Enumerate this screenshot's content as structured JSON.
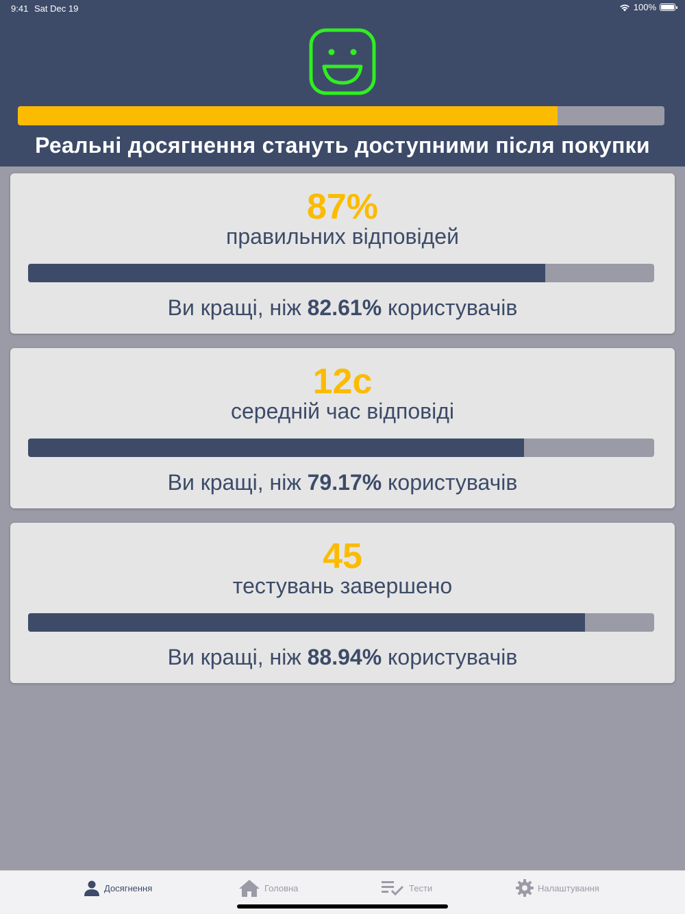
{
  "status_bar": {
    "time": "9:41",
    "date": "Sat Dec 19",
    "battery_text": "100%",
    "icons": [
      "wifi-icon",
      "battery-icon"
    ]
  },
  "header": {
    "icon": "smiley-face-icon",
    "progress_fraction": 0.835,
    "message": "Реальні досягнення стануть доступними після покупки"
  },
  "colors": {
    "header_bg": "#3d4b69",
    "accent_yellow": "#fbbb00",
    "smiley_green": "#2fef1f",
    "page_bg": "#9a9ba6",
    "card_bg": "#e5e5e5"
  },
  "cards": [
    {
      "value": "87%",
      "label": "правильних відповідей",
      "progress_fraction": 0.8261,
      "compare_prefix": "Ви кращі, ніж ",
      "compare_value": "82.61%",
      "compare_suffix": " користувачів"
    },
    {
      "value": "12с",
      "label": "середній час відповіді",
      "progress_fraction": 0.7917,
      "compare_prefix": "Ви кращі, ніж ",
      "compare_value": "79.17%",
      "compare_suffix": " користувачів"
    },
    {
      "value": "45",
      "label": "тестувань завершено",
      "progress_fraction": 0.8894,
      "compare_prefix": "Ви кращі, ніж ",
      "compare_value": "88.94%",
      "compare_suffix": " користувачів"
    }
  ],
  "tabs": [
    {
      "label": "Досягнення",
      "icon": "person-icon",
      "active": true
    },
    {
      "label": "Головна",
      "icon": "home-icon",
      "active": false
    },
    {
      "label": "Тести",
      "icon": "checklist-icon",
      "active": false
    },
    {
      "label": "Налаштування",
      "icon": "gear-icon",
      "active": false
    }
  ]
}
